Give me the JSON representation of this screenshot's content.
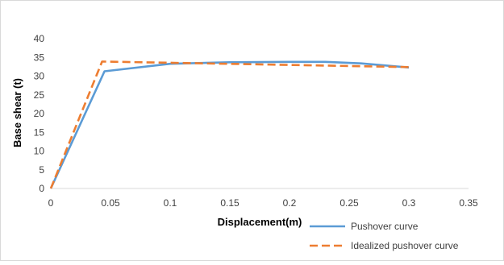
{
  "chart_data": {
    "type": "line",
    "xlabel": "Displacement(m)",
    "ylabel": "Base shear (t)",
    "xlim": [
      0,
      0.35
    ],
    "ylim": [
      0,
      40
    ],
    "x_ticks": [
      0,
      0.05,
      0.1,
      0.15,
      0.2,
      0.25,
      0.3,
      0.35
    ],
    "x_tick_labels": [
      "0",
      "0.05",
      "0.1",
      "0.15",
      "0.2",
      "0.25",
      "0.3",
      "0.35"
    ],
    "y_ticks": [
      0,
      5,
      10,
      15,
      20,
      25,
      30,
      35,
      40
    ],
    "y_tick_labels": [
      "0",
      "5",
      "10",
      "15",
      "20",
      "25",
      "30",
      "35",
      "40"
    ],
    "grid": false,
    "legend_position": "bottom-right",
    "series": [
      {
        "name": "Pushover curve",
        "color": "#5B9BD5",
        "style": "solid",
        "points": [
          [
            0,
            0
          ],
          [
            0.045,
            31.3
          ],
          [
            0.1,
            33.3
          ],
          [
            0.15,
            33.7
          ],
          [
            0.2,
            33.8
          ],
          [
            0.23,
            33.8
          ],
          [
            0.26,
            33.4
          ],
          [
            0.3,
            32.3
          ]
        ]
      },
      {
        "name": "Idealized pushover curve",
        "color": "#ED7D31",
        "style": "dashed",
        "points": [
          [
            0,
            0
          ],
          [
            0.043,
            33.9
          ],
          [
            0.3,
            32.4
          ]
        ]
      }
    ]
  }
}
